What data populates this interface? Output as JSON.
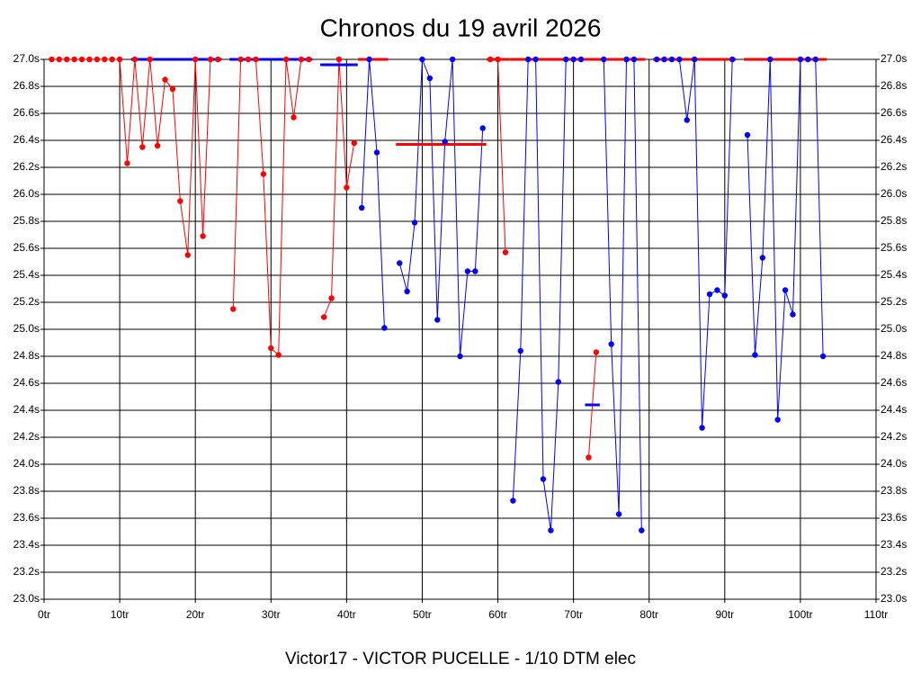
{
  "chart_data": {
    "type": "line",
    "title": "Chronos du 19 avril 2026",
    "xlabel": "Victor17 - VICTOR PUCELLE - 1/10 DTM elec",
    "xlim": [
      0,
      110
    ],
    "xticks": [
      {
        "value": 0,
        "label": "0tr"
      },
      {
        "value": 10,
        "label": "10tr"
      },
      {
        "value": 20,
        "label": "20tr"
      },
      {
        "value": 30,
        "label": "30tr"
      },
      {
        "value": 40,
        "label": "40tr"
      },
      {
        "value": 50,
        "label": "50tr"
      },
      {
        "value": 60,
        "label": "60tr"
      },
      {
        "value": 70,
        "label": "70tr"
      },
      {
        "value": 80,
        "label": "80tr"
      },
      {
        "value": 90,
        "label": "90tr"
      },
      {
        "value": 100,
        "label": "100tr"
      },
      {
        "value": 110,
        "label": "110tr"
      }
    ],
    "ylim": [
      23.0,
      27.0
    ],
    "yticks": [
      {
        "value": 23.0,
        "label": "23.0s"
      },
      {
        "value": 23.2,
        "label": "23.2s"
      },
      {
        "value": 23.4,
        "label": "23.4s"
      },
      {
        "value": 23.6,
        "label": "23.6s"
      },
      {
        "value": 23.8,
        "label": "23.8s"
      },
      {
        "value": 24.0,
        "label": "24.0s"
      },
      {
        "value": 24.2,
        "label": "24.2s"
      },
      {
        "value": 24.4,
        "label": "24.4s"
      },
      {
        "value": 24.6,
        "label": "24.6s"
      },
      {
        "value": 24.8,
        "label": "24.8s"
      },
      {
        "value": 25.0,
        "label": "25.0s"
      },
      {
        "value": 25.2,
        "label": "25.2s"
      },
      {
        "value": 25.4,
        "label": "25.4s"
      },
      {
        "value": 25.6,
        "label": "25.6s"
      },
      {
        "value": 25.8,
        "label": "25.8s"
      },
      {
        "value": 26.0,
        "label": "26.0s"
      },
      {
        "value": 26.2,
        "label": "26.2s"
      },
      {
        "value": 26.4,
        "label": "26.4s"
      },
      {
        "value": 26.6,
        "label": "26.6s"
      },
      {
        "value": 26.8,
        "label": "26.8s"
      },
      {
        "value": 27.0,
        "label": "27.0s"
      }
    ],
    "grid": true,
    "x": [
      1,
      2,
      3,
      4,
      5,
      6,
      7,
      8,
      9,
      10,
      11,
      12,
      13,
      14,
      15,
      16,
      17,
      18,
      19,
      20,
      21,
      22,
      23,
      24,
      25,
      26,
      27,
      28,
      29,
      30,
      31,
      32,
      33,
      34,
      35,
      36,
      37,
      38,
      39,
      40,
      41,
      42,
      43,
      44,
      45,
      46,
      47,
      48,
      49,
      50,
      51,
      52,
      53,
      54,
      55,
      56,
      57,
      58,
      59,
      60,
      61,
      62,
      63,
      64,
      65,
      66,
      67,
      68,
      69,
      70,
      71,
      72,
      73,
      74,
      75,
      76,
      77,
      78,
      79,
      80,
      81,
      82,
      83,
      84,
      85,
      86,
      87,
      88,
      89,
      90,
      91,
      92,
      93,
      94,
      95,
      96,
      97,
      98,
      99,
      100,
      101,
      102,
      103
    ],
    "series": [
      {
        "color": "#ff0000",
        "values": [
          27.0,
          27.0,
          27.0,
          27.0,
          27.0,
          27.0,
          27.0,
          27.0,
          27.0,
          27.0,
          26.23,
          27.0,
          26.35,
          27.0,
          26.36,
          26.85,
          26.78,
          25.95,
          25.55,
          27.0,
          25.69,
          27.0,
          27.0,
          null,
          25.15,
          27.0,
          27.0,
          27.0,
          26.15,
          24.86,
          24.81,
          27.0,
          26.57,
          27.0,
          27.0,
          null,
          25.09,
          25.23,
          27.0,
          26.05,
          26.38,
          null,
          null,
          null,
          null,
          null,
          null,
          null,
          null,
          null,
          null,
          null,
          null,
          null,
          null,
          null,
          null,
          null,
          27.0,
          27.0,
          25.57,
          null,
          null,
          null,
          null,
          null,
          null,
          null,
          null,
          null,
          null,
          24.05,
          24.83,
          null,
          null,
          null,
          null,
          null,
          null,
          null,
          null,
          null,
          null,
          null,
          null,
          null,
          null,
          null,
          null,
          null,
          null,
          null,
          null,
          null,
          null,
          null,
          null,
          null,
          null,
          null,
          null,
          null,
          null
        ]
      },
      {
        "color": "#0000ff",
        "values": [
          null,
          null,
          null,
          null,
          null,
          null,
          null,
          null,
          null,
          null,
          null,
          null,
          null,
          null,
          null,
          null,
          null,
          null,
          null,
          null,
          null,
          null,
          null,
          null,
          null,
          null,
          null,
          null,
          null,
          null,
          null,
          null,
          null,
          null,
          null,
          null,
          null,
          null,
          null,
          null,
          null,
          25.9,
          27.0,
          26.31,
          25.01,
          null,
          25.49,
          25.28,
          25.79,
          27.0,
          26.86,
          25.07,
          26.39,
          27.0,
          24.8,
          25.43,
          25.43,
          26.49,
          null,
          null,
          null,
          23.73,
          24.84,
          27.0,
          27.0,
          23.89,
          23.51,
          24.61,
          27.0,
          27.0,
          27.0,
          null,
          null,
          27.0,
          24.89,
          23.63,
          27.0,
          27.0,
          23.51,
          null,
          27.0,
          27.0,
          27.0,
          27.0,
          26.55,
          27.0,
          24.27,
          25.26,
          25.29,
          25.25,
          27.0,
          null,
          26.44,
          24.81,
          25.53,
          27.0,
          24.33,
          25.29,
          25.11,
          27.0,
          27.0,
          27.0,
          24.8
        ]
      }
    ],
    "averages": [
      {
        "color": "#0000ff",
        "from": 12,
        "to": 23,
        "value": 27.0
      },
      {
        "color": "#0000ff",
        "from": 25,
        "to": 35,
        "value": 27.0
      },
      {
        "color": "#0000ff",
        "from": 37,
        "to": 41,
        "value": 26.96
      },
      {
        "color": "#ff0000",
        "from": 42,
        "to": 45,
        "value": 27.0
      },
      {
        "color": "#ff0000",
        "from": 47,
        "to": 58,
        "value": 26.37
      },
      {
        "color": "#ff0000",
        "from": 59,
        "to": 61,
        "value": 27.0
      },
      {
        "color": "#ff0000",
        "from": 62,
        "to": 79,
        "value": 27.0
      },
      {
        "color": "#0000ff",
        "from": 72,
        "to": 73,
        "value": 24.44
      },
      {
        "color": "#ff0000",
        "from": 81,
        "to": 91,
        "value": 27.0
      },
      {
        "color": "#ff0000",
        "from": 93,
        "to": 103,
        "value": 27.0
      }
    ]
  }
}
